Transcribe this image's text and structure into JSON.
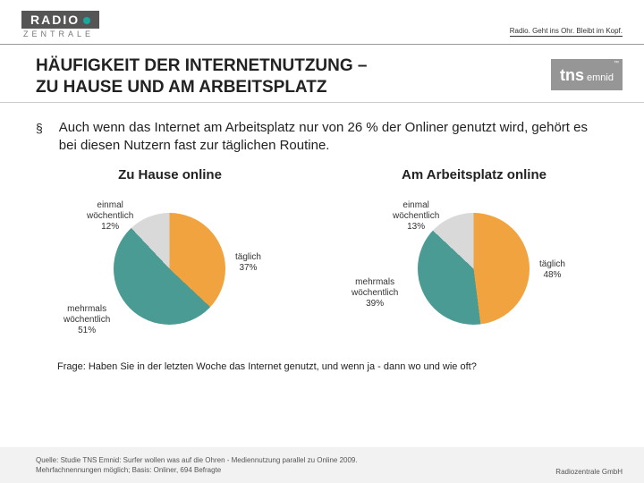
{
  "header": {
    "logo_top": "RADIO",
    "logo_bottom": "ZENTRALE",
    "tagline": "Radio. Geht ins Ohr. Bleibt im Kopf."
  },
  "title": {
    "line1": "HÄUFIGKEIT DER INTERNETNUTZUNG –",
    "line2": "ZU HAUSE UND AM ARBEITSPLATZ"
  },
  "tns": {
    "brand": "tns",
    "sub": "emnid"
  },
  "bullet": {
    "marker": "§",
    "text": "Auch wenn das Internet am Arbeitsplatz nur von 26 % der Onliner genutzt wird, gehört es bei diesen Nutzern fast zur täglichen Routine."
  },
  "charts": {
    "left": {
      "title": "Zu Hause online",
      "type": "pie",
      "slices": [
        {
          "label": "täglich",
          "value": 37,
          "color": "#f0a33e"
        },
        {
          "label": "mehrmals wöchentlich",
          "value": 51,
          "color": "#4a9b93"
        },
        {
          "label": "einmal wöchentlich",
          "value": 12,
          "color": "#d9d9d9"
        }
      ],
      "label_fontsize": 10
    },
    "right": {
      "title": "Am Arbeitsplatz online",
      "type": "pie",
      "slices": [
        {
          "label": "täglich",
          "value": 48,
          "color": "#f0a33e"
        },
        {
          "label": "mehrmals wöchentlich",
          "value": 39,
          "color": "#4a9b93"
        },
        {
          "label": "einmal wöchentlich",
          "value": 13,
          "color": "#d9d9d9"
        }
      ],
      "label_fontsize": 10
    }
  },
  "question": "Frage: Haben Sie in der letzten Woche das Internet genutzt, und wenn ja - dann wo und wie oft?",
  "footer": {
    "source_line1": "Quelle: Studie TNS Emnid: Surfer wollen was auf die Ohren - Mediennutzung parallel zu Online 2009.",
    "source_line2": "Mehrfachnennungen möglich; Basis: Onliner, 694 Befragte",
    "right": "Radiozentrale GmbH"
  },
  "colors": {
    "background": "#ffffff",
    "text": "#222222",
    "footer_bg": "#f2f2f2",
    "divider": "#cccccc"
  }
}
